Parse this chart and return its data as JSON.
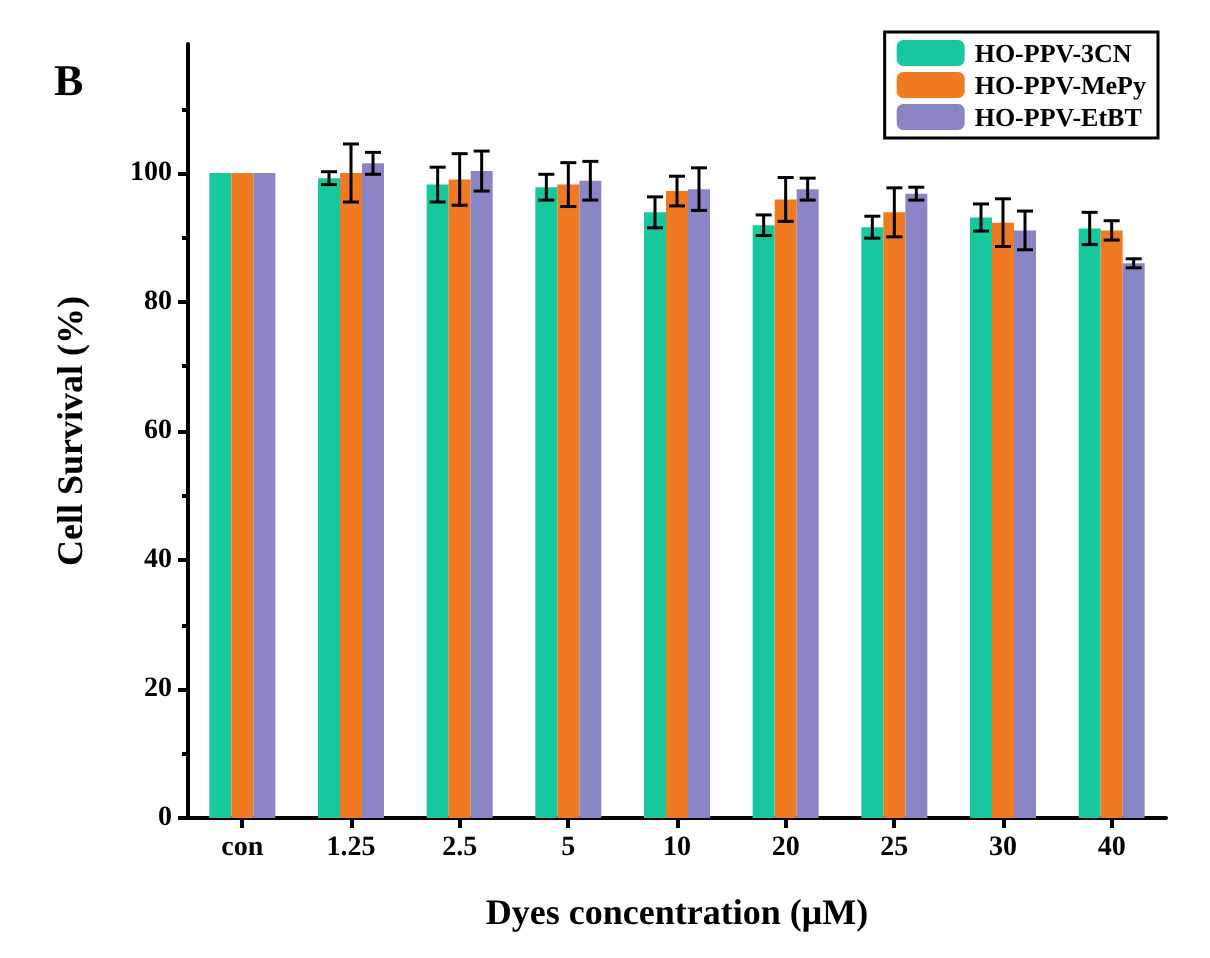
{
  "chart_data": {
    "type": "bar",
    "title": "B",
    "xlabel": "Dyes concentration (μM)",
    "ylabel": "Cell Survival (%)",
    "categories": [
      "con",
      "1.25",
      "2.5",
      "5",
      "10",
      "20",
      "25",
      "30",
      "40"
    ],
    "series": [
      {
        "name": "HO-PPV-3CN",
        "color": "#17c89e",
        "values": [
          100,
          99.2,
          98.2,
          97.8,
          93.9,
          91.9,
          91.6,
          93.1,
          91.4
        ],
        "errors": [
          null,
          1,
          2.7,
          2,
          2.4,
          1.6,
          1.7,
          2.1,
          2.5
        ]
      },
      {
        "name": "HO-PPV-MePy",
        "color": "#f07a22",
        "values": [
          100,
          100,
          99,
          98.2,
          97.2,
          95.9,
          93.9,
          92.3,
          91.1
        ],
        "errors": [
          null,
          4.5,
          4,
          3.4,
          2.3,
          3.4,
          3.8,
          3.7,
          1.5
        ]
      },
      {
        "name": "HO-PPV-EtBT",
        "color": "#8a86c6",
        "values": [
          100,
          101.5,
          100.3,
          98.8,
          97.5,
          97.5,
          96.8,
          91.1,
          86
        ],
        "errors": [
          null,
          1.7,
          3.1,
          3,
          3.3,
          1.7,
          1,
          3,
          0.7
        ]
      }
    ],
    "ylim": [
      0,
      120
    ],
    "yticks": [
      0,
      20,
      40,
      60,
      80,
      100
    ],
    "legend": "top right"
  }
}
